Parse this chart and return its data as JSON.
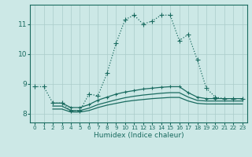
{
  "xlabel": "Humidex (Indice chaleur)",
  "bg_color": "#cce8e6",
  "grid_color": "#aaccca",
  "line_color": "#1a6b60",
  "xlim": [
    -0.5,
    23.5
  ],
  "ylim": [
    7.7,
    11.65
  ],
  "yticks": [
    8,
    9,
    10,
    11
  ],
  "xticks": [
    0,
    1,
    2,
    3,
    4,
    5,
    6,
    7,
    8,
    9,
    10,
    11,
    12,
    13,
    14,
    15,
    16,
    17,
    18,
    19,
    20,
    21,
    22,
    23
  ],
  "series": [
    {
      "x": [
        0,
        1,
        2,
        3,
        4,
        5,
        6,
        7,
        8,
        9,
        10,
        11,
        12,
        13,
        14,
        15,
        16,
        17,
        18,
        19,
        20,
        21,
        22,
        23
      ],
      "y": [
        8.9,
        8.9,
        8.35,
        8.35,
        8.1,
        8.1,
        8.65,
        8.6,
        9.35,
        10.35,
        11.15,
        11.3,
        11.0,
        11.1,
        11.3,
        11.3,
        10.45,
        10.65,
        9.8,
        8.85,
        8.55,
        8.5,
        8.5,
        8.5
      ],
      "marker": "+",
      "linestyle": "dotted",
      "linewidth": 0.9,
      "markersize": 4
    },
    {
      "x": [
        2,
        3,
        4,
        5,
        6,
        7,
        8,
        9,
        10,
        11,
        12,
        13,
        14,
        15,
        16,
        17,
        18,
        19,
        20,
        21,
        22,
        23
      ],
      "y": [
        8.35,
        8.35,
        8.2,
        8.2,
        8.3,
        8.45,
        8.55,
        8.65,
        8.72,
        8.77,
        8.82,
        8.85,
        8.88,
        8.9,
        8.9,
        8.7,
        8.55,
        8.5,
        8.5,
        8.5,
        8.5,
        8.5
      ],
      "marker": "+",
      "linestyle": "-",
      "linewidth": 0.9,
      "markersize": 3
    },
    {
      "x": [
        2,
        3,
        4,
        5,
        6,
        7,
        8,
        9,
        10,
        11,
        12,
        13,
        14,
        15,
        16,
        17,
        18,
        19,
        20,
        21,
        22,
        23
      ],
      "y": [
        8.25,
        8.25,
        8.1,
        8.1,
        8.18,
        8.3,
        8.38,
        8.46,
        8.53,
        8.58,
        8.62,
        8.65,
        8.68,
        8.7,
        8.7,
        8.55,
        8.44,
        8.42,
        8.42,
        8.42,
        8.42,
        8.42
      ],
      "marker": null,
      "linestyle": "-",
      "linewidth": 0.9,
      "markersize": 0
    },
    {
      "x": [
        2,
        3,
        4,
        5,
        6,
        7,
        8,
        9,
        10,
        11,
        12,
        13,
        14,
        15,
        16,
        17,
        18,
        19,
        20,
        21,
        22,
        23
      ],
      "y": [
        8.15,
        8.15,
        8.05,
        8.05,
        8.1,
        8.2,
        8.28,
        8.34,
        8.4,
        8.44,
        8.47,
        8.5,
        8.52,
        8.54,
        8.54,
        8.42,
        8.34,
        8.32,
        8.32,
        8.32,
        8.32,
        8.32
      ],
      "marker": null,
      "linestyle": "-",
      "linewidth": 0.9,
      "markersize": 0
    }
  ]
}
